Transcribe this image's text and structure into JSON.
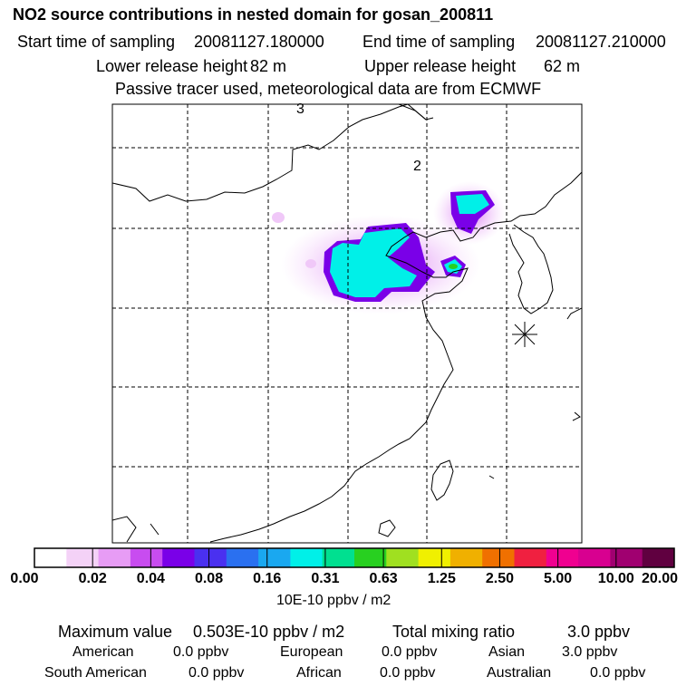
{
  "chart_data": {
    "type": "heatmap",
    "title": "NO2 source contributions in nested domain for gosan_200811",
    "start_label": "Start time of sampling",
    "start_value": "20081127.180000",
    "end_label": "End time of sampling",
    "end_value": "20081127.210000",
    "lower_label": "Lower release height",
    "lower_value": "82 m",
    "upper_label": "Upper release height",
    "upper_value": "62 m",
    "note": "Passive tracer used, meteorological data are from ECMWF",
    "map_labels": [
      "3",
      "2"
    ],
    "receptor_marker": "Gosan",
    "colorbar": {
      "levels": [
        "0.00",
        "0.02",
        "0.04",
        "0.08",
        "0.16",
        "0.31",
        "0.63",
        "1.25",
        "2.50",
        "5.00",
        "10.00",
        "20.00"
      ],
      "unit": "10E-10 ppbv / m2",
      "colors": [
        "#ffffff",
        "#f4d2f7",
        "#e79cf5",
        "#c84cf0",
        "#7a00e8",
        "#4a30f0",
        "#2a70f0",
        "#1aa8f0",
        "#00f0e8",
        "#00e090",
        "#28d020",
        "#a0e020",
        "#f0f000",
        "#f0b000",
        "#f07000",
        "#f02040",
        "#f00090",
        "#d80090",
        "#a00070",
        "#600040"
      ]
    },
    "summary": {
      "max_label": "Maximum value",
      "max_value": "0.503E-10 ppbv / m2",
      "total_label": "Total mixing ratio",
      "total_value": "3.0 ppbv",
      "regions": [
        {
          "name": "American",
          "value": "0.0 ppbv"
        },
        {
          "name": "European",
          "value": "0.0 ppbv"
        },
        {
          "name": "Asian",
          "value": "3.0 ppbv"
        },
        {
          "name": "South American",
          "value": "0.0 ppbv"
        },
        {
          "name": "African",
          "value": "0.0 ppbv"
        },
        {
          "name": "Australian",
          "value": "0.0 ppbv"
        }
      ]
    }
  }
}
